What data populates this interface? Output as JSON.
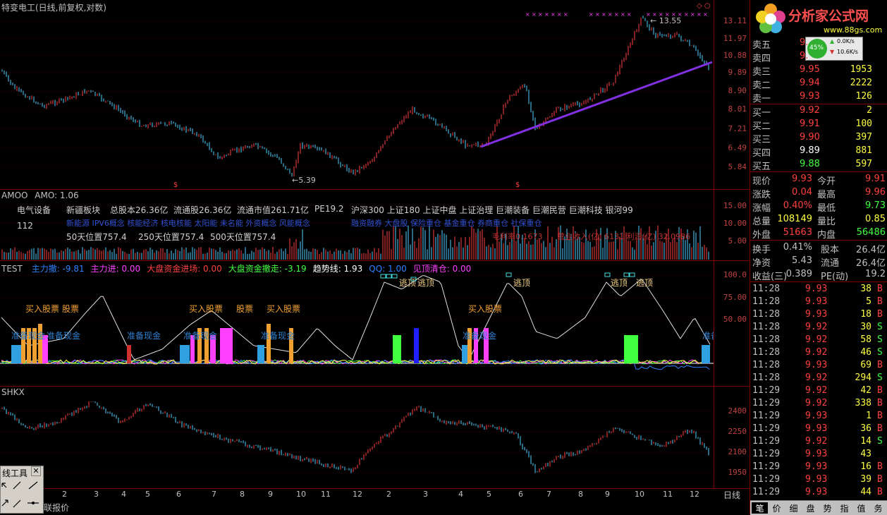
{
  "main_title": "特变电工(日线,前复权,对数)",
  "main_axis": [
    "13.11",
    "11.97",
    "10.88",
    "9.89",
    "8.90",
    "8.01",
    "7.21",
    "6.49",
    "5.84"
  ],
  "price_high_label": "13.55",
  "price_low_label": "5.39",
  "amo_title": "AMOO",
  "amo_value": "AMO: 1.06",
  "amo_axis": [
    "15.00",
    "10.00",
    "5.00"
  ],
  "info": {
    "sector": "电气设备",
    "region": "新疆板块",
    "total_shares": "总股本26.36亿",
    "float_shares": "流通股26.36亿",
    "float_mktcap": "流通市值261.71亿",
    "pe": "PE19.2",
    "tags": "沪深300 上证180 上证中盘 上证治理 巨潮装备 巨潮民营 巨潮科技 银河99",
    "num": "112",
    "concepts": "新能源 IPV6概念 核能经济 核电核能 太阳能 未名能 外资概念 风能概念",
    "concepts2": "融资融券 大盘股 保险重仓 基金重仓 券商重仓 社保重仓",
    "pos50": "50天位置757.4",
    "pos250": "250天位置757.4",
    "pos500": "500天位置757.4",
    "gross": "毛利率0.1673",
    "revenue": "营业收入(亿) 6131 利润(亿) 32.0986"
  },
  "test_title": "TEST",
  "test_items": [
    {
      "text": "主力撤: -9.81",
      "color": "#3080ff"
    },
    {
      "text": "主力进: 0.00",
      "color": "#ff40ff"
    },
    {
      "text": "大盘资金进场: 0.00",
      "color": "#ff4040"
    },
    {
      "text": "大盘资金撤走: -3.19",
      "color": "#40ff40"
    },
    {
      "text": "趋势线: 1.93",
      "color": "#ffffff"
    },
    {
      "text": "QQ: 1.00",
      "color": "#3080ff"
    },
    {
      "text": "见顶清仓: 0.00",
      "color": "#ff40ff"
    }
  ],
  "test_axis": [
    "100.0",
    "75.00",
    "50.00"
  ],
  "test_labels": {
    "buy1": "买入股票",
    "buy1b": "股票",
    "prep1": "准备现金",
    "prep2": "准备现金",
    "buy2": "买入股票",
    "buy2b": "股票",
    "prep3": "准备现金",
    "prep4": "准备现金",
    "buy3": "买入股票",
    "prep5": "准备现金",
    "top1": "逃顶",
    "top1b": "逃顶",
    "buy4": "买入股票",
    "prep6": "准备现金",
    "top2": "逃顶",
    "top3": "逃顶",
    "top4": "逃顶",
    "prep7": "准备"
  },
  "shkx_title": "SHKX",
  "shkx_axis": [
    "2400",
    "2250",
    "2100",
    "1950"
  ],
  "date_axis": [
    "2",
    "3",
    "4",
    "5",
    "6",
    "7",
    "8",
    "9",
    "10",
    "11",
    "12",
    "2",
    "3",
    "4",
    "5",
    "6",
    "7",
    "8",
    "9",
    "10",
    "11",
    "12"
  ],
  "period_label": "日线",
  "status_text": "联报价",
  "tools_title": "线工具",
  "logo_text": "分析家公式网",
  "logo_url": "www.88gs.com",
  "net": {
    "pct": "45%",
    "up": "0.0K/s",
    "down": "10.6K/s"
  },
  "sell_orders": [
    {
      "label": "卖五",
      "price": "9.",
      "vol": ""
    },
    {
      "label": "卖四",
      "price": "9.",
      "vol": ""
    },
    {
      "label": "卖三",
      "price": "9.95",
      "vol": "1953"
    },
    {
      "label": "卖二",
      "price": "9.94",
      "vol": "2222"
    },
    {
      "label": "卖一",
      "price": "9.93",
      "vol": "126"
    }
  ],
  "buy_orders": [
    {
      "label": "买一",
      "price": "9.92",
      "vol": "2"
    },
    {
      "label": "买二",
      "price": "9.91",
      "vol": "100"
    },
    {
      "label": "买三",
      "price": "9.90",
      "vol": "397"
    },
    {
      "label": "买四",
      "price": "9.89",
      "vol": "881"
    },
    {
      "label": "买五",
      "price": "9.88",
      "vol": "597"
    }
  ],
  "stats": [
    {
      "l1": "现价",
      "v1": "9.93",
      "l2": "今开",
      "v2": "9.91",
      "c1": "#ff4040",
      "c2": "#ff4040"
    },
    {
      "l1": "涨跌",
      "v1": "0.04",
      "l2": "最高",
      "v2": "9.96",
      "c1": "#ff4040",
      "c2": "#ff4040"
    },
    {
      "l1": "涨幅",
      "v1": "0.40%",
      "l2": "最低",
      "v2": "9.73",
      "c1": "#ff4040",
      "c2": "#40ff40"
    },
    {
      "l1": "总量",
      "v1": "108149",
      "l2": "量比",
      "v2": "0.85",
      "c1": "#ffff40",
      "c2": "#ffff40"
    },
    {
      "l1": "外盘",
      "v1": "51663",
      "l2": "内盘",
      "v2": "56486",
      "c1": "#ff4040",
      "c2": "#40ff40"
    }
  ],
  "stats2": [
    {
      "l1": "换手",
      "v1": "0.41%",
      "l2": "股本",
      "v2": "26.4亿"
    },
    {
      "l1": "净资",
      "v1": "5.43",
      "l2": "流通",
      "v2": "26.4亿"
    },
    {
      "l1": "收益(三)",
      "v1": "0.389",
      "l2": "PE(动)",
      "v2": "19.2"
    }
  ],
  "ticks": [
    {
      "t": "11:28",
      "p": "9.93",
      "v": "38",
      "s": "B"
    },
    {
      "t": "11:28",
      "p": "9.93",
      "v": "5",
      "s": "B"
    },
    {
      "t": "11:28",
      "p": "9.93",
      "v": "18",
      "s": "B"
    },
    {
      "t": "11:28",
      "p": "9.92",
      "v": "30",
      "s": "S"
    },
    {
      "t": "11:28",
      "p": "9.92",
      "v": "58",
      "s": "S"
    },
    {
      "t": "11:28",
      "p": "9.92",
      "v": "46",
      "s": "S"
    },
    {
      "t": "11:28",
      "p": "9.93",
      "v": "69",
      "s": "B"
    },
    {
      "t": "11:28",
      "p": "9.92",
      "v": "294",
      "s": "S"
    },
    {
      "t": "11:29",
      "p": "9.92",
      "v": "42",
      "s": "B"
    },
    {
      "t": "11:29",
      "p": "9.92",
      "v": "338",
      "s": "B"
    },
    {
      "t": "11:29",
      "p": "9.93",
      "v": "1",
      "s": "B"
    },
    {
      "t": "11:29",
      "p": "9.93",
      "v": "36",
      "s": "B"
    },
    {
      "t": "11:29",
      "p": "9.92",
      "v": "14",
      "s": "S"
    },
    {
      "t": "11:29",
      "p": "9.93",
      "v": "43",
      "s": ""
    },
    {
      "t": "11:29",
      "p": "9.93",
      "v": "16",
      "s": "B"
    },
    {
      "t": "11:29",
      "p": "9.93",
      "v": "39",
      "s": "B"
    },
    {
      "t": "11:29",
      "p": "9.93",
      "v": "44",
      "s": "B"
    }
  ],
  "tabs": [
    "笔",
    "价",
    "细",
    "盘",
    "势",
    "指",
    "值",
    "务"
  ],
  "colors": {
    "up": "#ff4040",
    "down": "#50d0ff",
    "grid": "#800000",
    "trend": "#8030e0"
  }
}
